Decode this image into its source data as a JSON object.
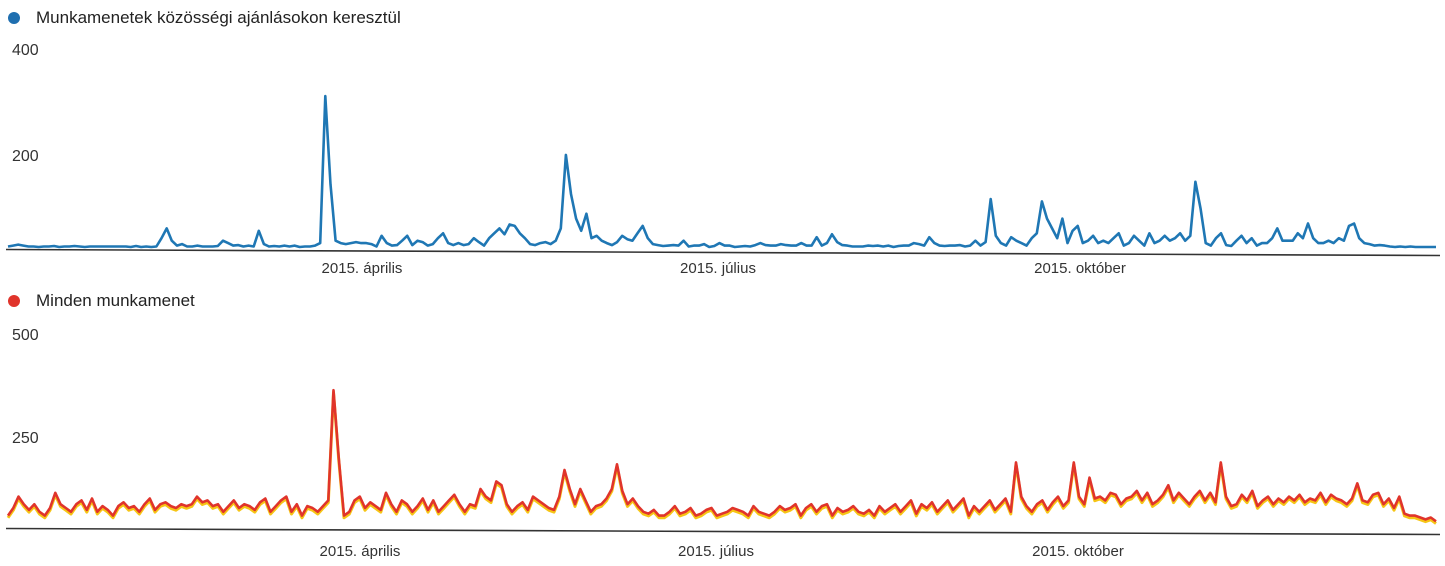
{
  "chart_data": [
    {
      "type": "line",
      "series": [
        {
          "name": "Munkamenetek közösségi ajánlásokon keresztül",
          "color": "#1f77b4"
        }
      ],
      "y_ticks": [
        "400",
        "200"
      ],
      "ylim": [
        0,
        400
      ],
      "x_labels": [
        "2015. április",
        "2015. július",
        "2015. október"
      ],
      "values": [
        3,
        5,
        7,
        5,
        3,
        3,
        2,
        3,
        3,
        4,
        2,
        3,
        3,
        4,
        3,
        2,
        3,
        3,
        3,
        3,
        3,
        3,
        3,
        3,
        2,
        4,
        2,
        3,
        2,
        3,
        20,
        40,
        15,
        5,
        8,
        3,
        3,
        5,
        3,
        3,
        3,
        4,
        15,
        10,
        5,
        6,
        3,
        5,
        3,
        35,
        8,
        3,
        4,
        3,
        5,
        3,
        5,
        2,
        3,
        3,
        5,
        10,
        310,
        130,
        15,
        10,
        8,
        10,
        12,
        10,
        10,
        8,
        3,
        25,
        10,
        5,
        6,
        15,
        25,
        6,
        15,
        12,
        5,
        8,
        20,
        30,
        10,
        6,
        10,
        6,
        8,
        20,
        12,
        5,
        20,
        30,
        40,
        28,
        48,
        45,
        30,
        20,
        8,
        6,
        10,
        12,
        8,
        15,
        40,
        190,
        110,
        60,
        35,
        70,
        20,
        25,
        15,
        10,
        6,
        12,
        25,
        18,
        15,
        30,
        45,
        20,
        8,
        6,
        4,
        5,
        6,
        5,
        15,
        3,
        5,
        5,
        8,
        2,
        4,
        10,
        5,
        5,
        2,
        3,
        4,
        3,
        6,
        10,
        6,
        5,
        5,
        8,
        6,
        5,
        5,
        10,
        5,
        5,
        22,
        5,
        10,
        28,
        12,
        6,
        5,
        3,
        3,
        3,
        5,
        4,
        5,
        3,
        5,
        2,
        4,
        5,
        5,
        10,
        8,
        5,
        22,
        10,
        5,
        4,
        5,
        5,
        6,
        3,
        5,
        15,
        5,
        12,
        100,
        25,
        10,
        5,
        22,
        15,
        10,
        5,
        20,
        30,
        95,
        60,
        40,
        20,
        60,
        10,
        35,
        45,
        10,
        15,
        25,
        10,
        15,
        10,
        20,
        30,
        5,
        10,
        25,
        15,
        5,
        30,
        10,
        15,
        25,
        15,
        20,
        30,
        15,
        25,
        135,
        80,
        10,
        5,
        20,
        30,
        6,
        4,
        15,
        25,
        10,
        20,
        5,
        10,
        10,
        20,
        40,
        15,
        15,
        15,
        30,
        20,
        50,
        20,
        10,
        10,
        15,
        10,
        20,
        15,
        45,
        50,
        20,
        10,
        8,
        5,
        6,
        5,
        3,
        2,
        3,
        2,
        3,
        2,
        2,
        2,
        2,
        2
      ]
    },
    {
      "type": "line",
      "series": [
        {
          "name": "Minden munkamenet",
          "color": "#e0342b",
          "under_color": "#f6c515"
        }
      ],
      "y_ticks": [
        "500",
        "250"
      ],
      "ylim": [
        0,
        500
      ],
      "x_labels": [
        "2015. április",
        "2015. július",
        "2015. október"
      ],
      "values": [
        30,
        50,
        80,
        60,
        45,
        60,
        40,
        30,
        50,
        90,
        60,
        50,
        40,
        60,
        70,
        45,
        75,
        40,
        55,
        45,
        30,
        55,
        65,
        50,
        55,
        40,
        60,
        75,
        45,
        60,
        65,
        55,
        50,
        60,
        55,
        60,
        80,
        65,
        70,
        55,
        60,
        40,
        55,
        70,
        50,
        60,
        55,
        45,
        65,
        75,
        40,
        55,
        70,
        80,
        40,
        60,
        30,
        55,
        50,
        40,
        55,
        70,
        360,
        180,
        30,
        40,
        70,
        80,
        50,
        65,
        55,
        45,
        90,
        60,
        40,
        70,
        60,
        40,
        55,
        75,
        45,
        70,
        40,
        55,
        70,
        85,
        60,
        40,
        60,
        55,
        100,
        80,
        70,
        120,
        110,
        60,
        40,
        55,
        65,
        45,
        80,
        70,
        60,
        50,
        45,
        80,
        150,
        100,
        60,
        100,
        70,
        40,
        55,
        60,
        75,
        100,
        165,
        95,
        60,
        75,
        55,
        40,
        35,
        45,
        30,
        30,
        40,
        55,
        35,
        40,
        50,
        30,
        35,
        45,
        50,
        30,
        35,
        40,
        50,
        45,
        40,
        30,
        55,
        40,
        35,
        30,
        40,
        55,
        45,
        50,
        60,
        30,
        50,
        60,
        40,
        55,
        60,
        30,
        50,
        40,
        45,
        55,
        40,
        35,
        45,
        30,
        55,
        40,
        50,
        60,
        40,
        55,
        70,
        35,
        60,
        50,
        65,
        40,
        55,
        70,
        45,
        60,
        75,
        30,
        55,
        40,
        55,
        70,
        45,
        60,
        75,
        40,
        170,
        80,
        55,
        40,
        60,
        70,
        45,
        65,
        80,
        55,
        70,
        170,
        80,
        60,
        130,
        75,
        80,
        70,
        90,
        85,
        60,
        75,
        80,
        95,
        70,
        90,
        60,
        70,
        85,
        110,
        70,
        90,
        75,
        60,
        80,
        95,
        70,
        90,
        65,
        170,
        80,
        55,
        60,
        85,
        70,
        95,
        55,
        70,
        80,
        60,
        75,
        65,
        80,
        70,
        85,
        65,
        75,
        70,
        90,
        65,
        85,
        75,
        70,
        60,
        75,
        115,
        70,
        65,
        85,
        90,
        60,
        75,
        50,
        80,
        35,
        30,
        30,
        25,
        20,
        25,
        15
      ]
    }
  ]
}
